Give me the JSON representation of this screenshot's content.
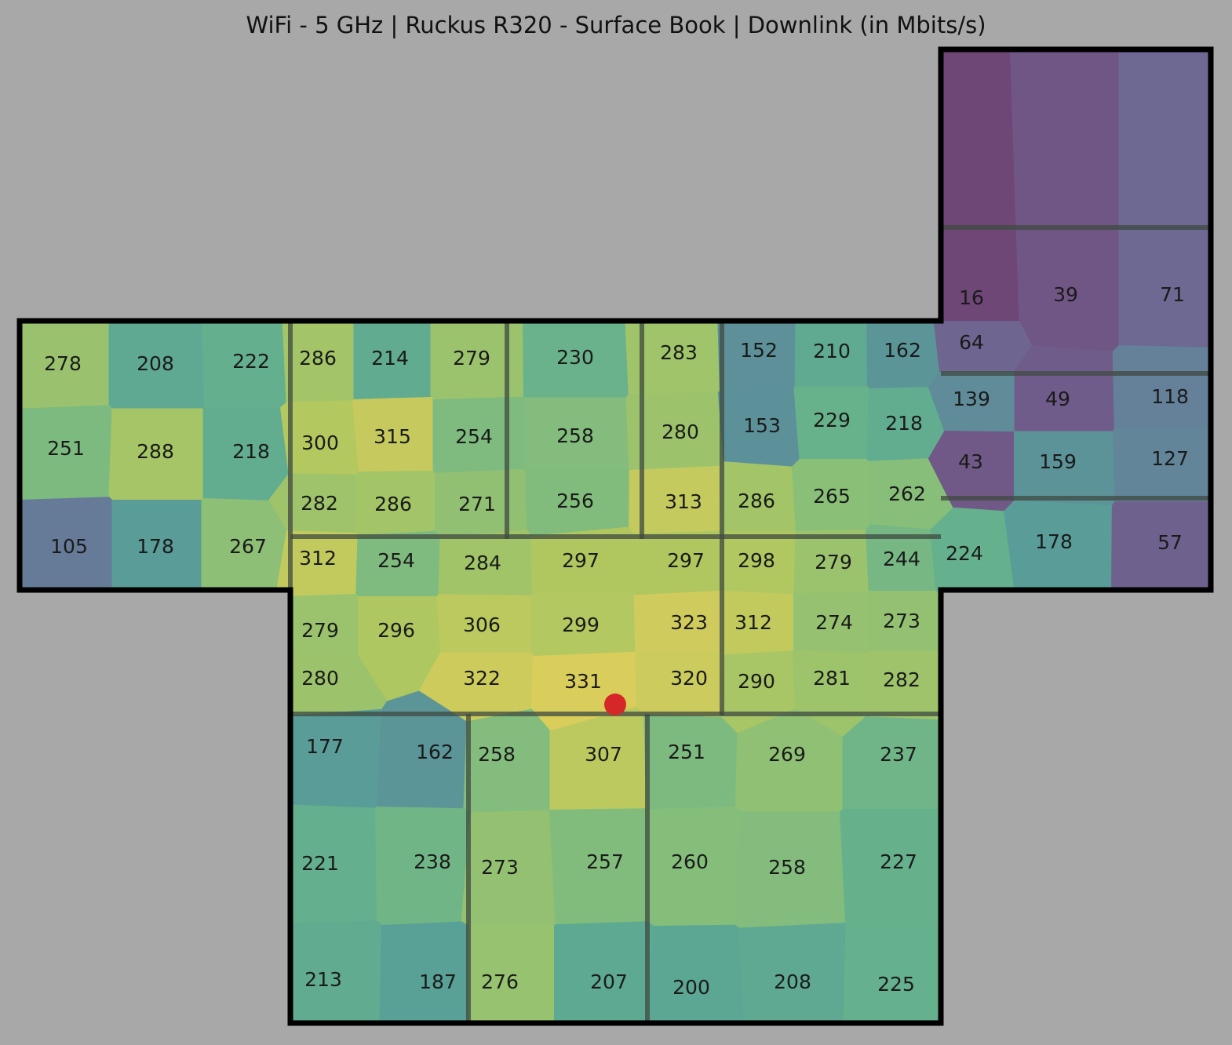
{
  "chart_data": {
    "type": "heatmap",
    "title": "WiFi - 5 GHz | Ruckus R320 - Surface Book | Downlink (in Mbits/s)",
    "unit": "Mbits/s",
    "measurements": [
      {
        "value": 278
      },
      {
        "value": 208
      },
      {
        "value": 222
      },
      {
        "value": 286
      },
      {
        "value": 214
      },
      {
        "value": 279
      },
      {
        "value": 230
      },
      {
        "value": 283
      },
      {
        "value": 152
      },
      {
        "value": 210
      },
      {
        "value": 162
      },
      {
        "value": 16
      },
      {
        "value": 39
      },
      {
        "value": 71
      },
      {
        "value": 64
      },
      {
        "value": 251
      },
      {
        "value": 288
      },
      {
        "value": 218
      },
      {
        "value": 300
      },
      {
        "value": 315
      },
      {
        "value": 254
      },
      {
        "value": 258
      },
      {
        "value": 280
      },
      {
        "value": 153
      },
      {
        "value": 229
      },
      {
        "value": 218
      },
      {
        "value": 139
      },
      {
        "value": 49
      },
      {
        "value": 118
      },
      {
        "value": 282
      },
      {
        "value": 286
      },
      {
        "value": 271
      },
      {
        "value": 256
      },
      {
        "value": 313
      },
      {
        "value": 286
      },
      {
        "value": 265
      },
      {
        "value": 262
      },
      {
        "value": 43
      },
      {
        "value": 159
      },
      {
        "value": 127
      },
      {
        "value": 105
      },
      {
        "value": 178
      },
      {
        "value": 267
      },
      {
        "value": 312
      },
      {
        "value": 254
      },
      {
        "value": 284
      },
      {
        "value": 297
      },
      {
        "value": 297
      },
      {
        "value": 298
      },
      {
        "value": 279
      },
      {
        "value": 244
      },
      {
        "value": 224
      },
      {
        "value": 178
      },
      {
        "value": 57
      },
      {
        "value": 279
      },
      {
        "value": 296
      },
      {
        "value": 306
      },
      {
        "value": 299
      },
      {
        "value": 323
      },
      {
        "value": 312
      },
      {
        "value": 274
      },
      {
        "value": 273
      },
      {
        "value": 280
      },
      {
        "value": 322
      },
      {
        "value": 331
      },
      {
        "value": 320
      },
      {
        "value": 290
      },
      {
        "value": 281
      },
      {
        "value": 282
      },
      {
        "value": 177
      },
      {
        "value": 162
      },
      {
        "value": 258
      },
      {
        "value": 307
      },
      {
        "value": 251
      },
      {
        "value": 269
      },
      {
        "value": 237
      },
      {
        "value": 221
      },
      {
        "value": 238
      },
      {
        "value": 273
      },
      {
        "value": 257
      },
      {
        "value": 260
      },
      {
        "value": 258
      },
      {
        "value": 227
      },
      {
        "value": 213
      },
      {
        "value": 187
      },
      {
        "value": 276
      },
      {
        "value": 207
      },
      {
        "value": 200
      },
      {
        "value": 208
      },
      {
        "value": 225
      }
    ],
    "colors": {
      "background": "#a8a8a8",
      "wall": "#000000",
      "access_point": "#d62728",
      "scale": "viridis"
    }
  }
}
